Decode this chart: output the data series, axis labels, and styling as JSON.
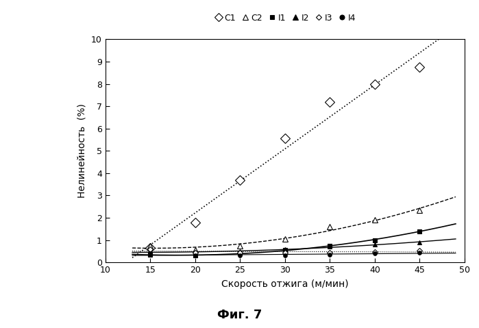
{
  "x_data": [
    15,
    20,
    25,
    30,
    35,
    40,
    45
  ],
  "C1_y": [
    0.65,
    1.8,
    3.7,
    5.55,
    7.2,
    8.0,
    8.75
  ],
  "C2_y": [
    0.75,
    0.55,
    0.75,
    1.05,
    1.6,
    1.9,
    2.35
  ],
  "I1_y": [
    0.35,
    0.3,
    0.4,
    0.55,
    0.75,
    1.0,
    1.4
  ],
  "I2_y": [
    0.5,
    0.4,
    0.5,
    0.6,
    0.7,
    0.8,
    0.9
  ],
  "I3_y": [
    0.6,
    0.45,
    0.45,
    0.45,
    0.45,
    0.48,
    0.52
  ],
  "I4_y": [
    0.4,
    0.3,
    0.3,
    0.32,
    0.35,
    0.4,
    0.45
  ],
  "x_fit_start": 13,
  "x_fit_end": 49,
  "xlim": [
    10,
    50
  ],
  "ylim": [
    0,
    10
  ],
  "xlabel": "Скорость отжига (м/мин)",
  "ylabel": "Нелинейность  (%)",
  "fig_title": "Фиг. 7",
  "xticks": [
    10,
    15,
    20,
    25,
    30,
    35,
    40,
    45,
    50
  ],
  "yticks": [
    0,
    1,
    2,
    3,
    4,
    5,
    6,
    7,
    8,
    9,
    10
  ],
  "bg_color": "#ffffff",
  "line_color": "#000000",
  "legend_items": [
    {
      "label": "C1",
      "marker": "D",
      "mfc": "white",
      "mec": "black",
      "ms": 6
    },
    {
      "label": "C2",
      "marker": "^",
      "mfc": "white",
      "mec": "black",
      "ms": 6
    },
    {
      "label": "I1",
      "marker": "s",
      "mfc": "black",
      "mec": "black",
      "ms": 5
    },
    {
      "label": "I2",
      "marker": "^",
      "mfc": "black",
      "mec": "black",
      "ms": 6
    },
    {
      "label": "I3",
      "marker": "D",
      "mfc": "white",
      "mec": "black",
      "ms": 4
    },
    {
      "label": "I4",
      "marker": "o",
      "mfc": "black",
      "mec": "black",
      "ms": 5
    }
  ]
}
